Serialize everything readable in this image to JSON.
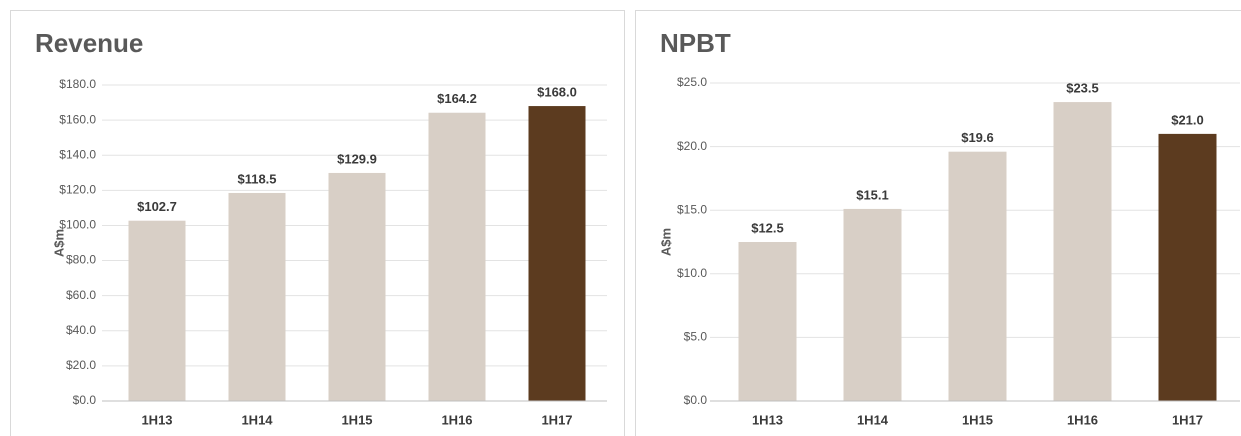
{
  "chart_data": [
    {
      "type": "bar",
      "title": "Revenue",
      "y_label": "A$m",
      "categories": [
        "1H13",
        "1H14",
        "1H15",
        "1H16",
        "1H17"
      ],
      "values": [
        102.7,
        118.5,
        129.9,
        164.2,
        168.0
      ],
      "value_labels": [
        "$102.7",
        "$118.5",
        "$129.9",
        "$164.2",
        "$168.0"
      ],
      "colors": [
        "#d8cfc6",
        "#d8cfc6",
        "#d8cfc6",
        "#d8cfc6",
        "#5c3b1f"
      ],
      "ylim": [
        0,
        180
      ],
      "yticks": [
        {
          "value": 0,
          "label": "$0.0"
        },
        {
          "value": 20,
          "label": "$20.0"
        },
        {
          "value": 40,
          "label": "$40.0"
        },
        {
          "value": 60,
          "label": "$60.0"
        },
        {
          "value": 80,
          "label": "$80.0"
        },
        {
          "value": 100,
          "label": "$100.0"
        },
        {
          "value": 120,
          "label": "$120.0"
        },
        {
          "value": 140,
          "label": "$140.0"
        },
        {
          "value": 160,
          "label": "$160.0"
        },
        {
          "value": 180,
          "label": "$180.0"
        }
      ],
      "grid": true
    },
    {
      "type": "bar",
      "title": "NPBT",
      "y_label": "A$m",
      "categories": [
        "1H13",
        "1H14",
        "1H15",
        "1H16",
        "1H17"
      ],
      "values": [
        12.5,
        15.1,
        19.6,
        23.5,
        21.0
      ],
      "value_labels": [
        "$12.5",
        "$15.1",
        "$19.6",
        "$23.5",
        "$21.0"
      ],
      "colors": [
        "#d8cfc6",
        "#d8cfc6",
        "#d8cfc6",
        "#d8cfc6",
        "#5c3b1f"
      ],
      "ylim": [
        0,
        25
      ],
      "yticks": [
        {
          "value": 0,
          "label": "$0.0"
        },
        {
          "value": 5,
          "label": "$5.0"
        },
        {
          "value": 10,
          "label": "$10.0"
        },
        {
          "value": 15,
          "label": "$15.0"
        },
        {
          "value": 20,
          "label": "$20.0"
        },
        {
          "value": 25,
          "label": "$25.0"
        }
      ],
      "grid": true
    }
  ]
}
